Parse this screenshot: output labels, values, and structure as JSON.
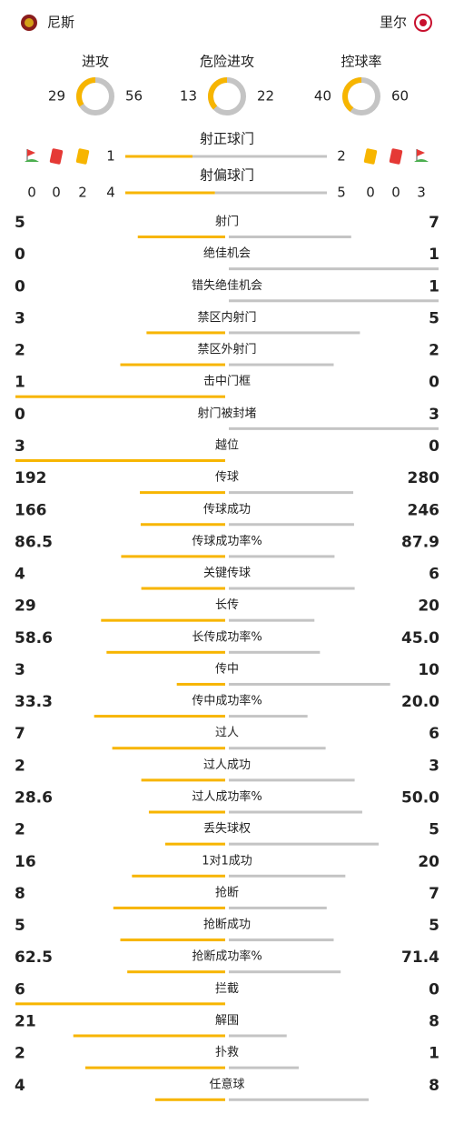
{
  "header": {
    "home": "尼斯",
    "away": "里尔"
  },
  "rings": [
    {
      "label": "进攻",
      "home": 29,
      "away": 56
    },
    {
      "label": "危险进攻",
      "home": 13,
      "away": 22
    },
    {
      "label": "控球率",
      "home": 40,
      "away": 60
    }
  ],
  "shots": [
    {
      "label": "射正球门",
      "home": 1,
      "away": 2
    },
    {
      "label": "射偏球门",
      "home": 4,
      "away": 5
    }
  ],
  "discipline": {
    "home": {
      "corners": 0,
      "red": 0,
      "yellow": 2
    },
    "away": {
      "yellow": 0,
      "red": 0,
      "corners": 3
    }
  },
  "stats": [
    {
      "label": "射门",
      "home": 5,
      "away": 7
    },
    {
      "label": "绝佳机会",
      "home": 0,
      "away": 1
    },
    {
      "label": "错失绝佳机会",
      "home": 0,
      "away": 1
    },
    {
      "label": "禁区内射门",
      "home": 3,
      "away": 5
    },
    {
      "label": "禁区外射门",
      "home": 2,
      "away": 2
    },
    {
      "label": "击中门框",
      "home": 1,
      "away": 0
    },
    {
      "label": "射门被封堵",
      "home": 0,
      "away": 3
    },
    {
      "label": "越位",
      "home": 3,
      "away": 0
    },
    {
      "label": "传球",
      "home": 192,
      "away": 280
    },
    {
      "label": "传球成功",
      "home": 166,
      "away": 246
    },
    {
      "label": "传球成功率%",
      "home": 86.5,
      "away": 87.9
    },
    {
      "label": "关键传球",
      "home": 4,
      "away": 6
    },
    {
      "label": "长传",
      "home": 29,
      "away": 20
    },
    {
      "label": "长传成功率%",
      "home": 58.6,
      "away": {
        "value": 45,
        "label": "45.0"
      }
    },
    {
      "label": "传中",
      "home": 3,
      "away": 10
    },
    {
      "label": "传中成功率%",
      "home": 33.3,
      "away": {
        "value": 20,
        "label": "20.0"
      }
    },
    {
      "label": "过人",
      "home": 7,
      "away": 6
    },
    {
      "label": "过人成功",
      "home": 2,
      "away": 3
    },
    {
      "label": "过人成功率%",
      "home": 28.6,
      "away": {
        "value": 50,
        "label": "50.0"
      }
    },
    {
      "label": "丢失球权",
      "home": 2,
      "away": 5
    },
    {
      "label": "1对1成功",
      "home": 16,
      "away": 20
    },
    {
      "label": "抢断",
      "home": 8,
      "away": 7
    },
    {
      "label": "抢断成功",
      "home": 5,
      "away": 5
    },
    {
      "label": "抢断成功率%",
      "home": 62.5,
      "away": 71.4
    },
    {
      "label": "拦截",
      "home": 6,
      "away": 0
    },
    {
      "label": "解围",
      "home": 21,
      "away": 8
    },
    {
      "label": "扑救",
      "home": 2,
      "away": 1
    },
    {
      "label": "任意球",
      "home": 4,
      "away": 8
    }
  ]
}
